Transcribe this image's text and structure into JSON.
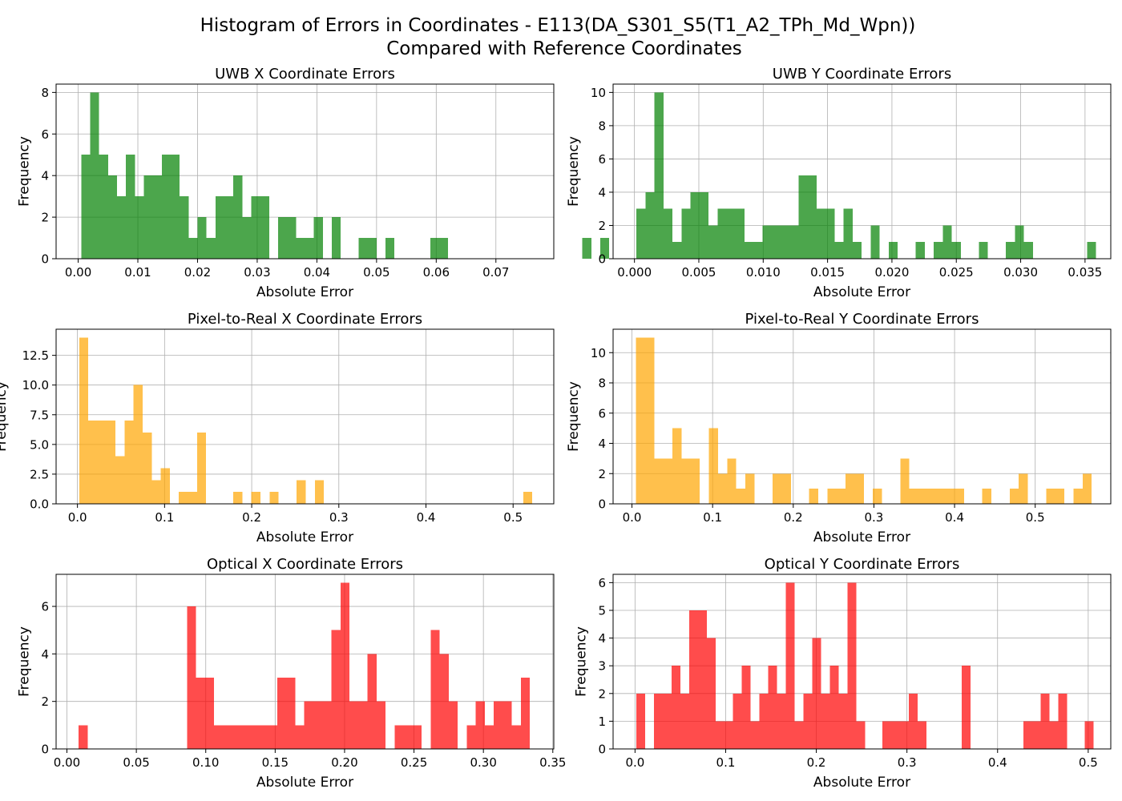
{
  "figure": {
    "title_line1": "Histogram of Errors in Coordinates - E113(DA_S301_S5(T1_A2_TPh_Md_Wpn))",
    "title_line2": "Compared with Reference Coordinates"
  },
  "chart_data": [
    {
      "type": "bar",
      "title": "UWB X Coordinate Errors",
      "xlabel": "Absolute Error",
      "ylabel": "Frequency",
      "color": "#008000",
      "bin_start": 0.0005,
      "bin_width": 0.0015,
      "counts": [
        5,
        8,
        5,
        4,
        3,
        5,
        3,
        4,
        4,
        5,
        5,
        3,
        1,
        2,
        1,
        3,
        3,
        4,
        2,
        3,
        3,
        0,
        2,
        2,
        1,
        1,
        2,
        0,
        2,
        0,
        0,
        1,
        1,
        0,
        1,
        0,
        0,
        0,
        0,
        1,
        1,
        0,
        0,
        0,
        0,
        0,
        0,
        0,
        0,
        0,
        0,
        0,
        0,
        0,
        0,
        0,
        1,
        0,
        1
      ],
      "xlim": [
        -0.0037,
        0.0797
      ],
      "ylim": [
        0,
        8.4
      ],
      "xticks": [
        0,
        0.01,
        0.02,
        0.03,
        0.04,
        0.05,
        0.06,
        0.07
      ],
      "xtick_labels": [
        "0.00",
        "0.01",
        "0.02",
        "0.03",
        "0.04",
        "0.05",
        "0.06",
        "0.07"
      ],
      "yticks": [
        0,
        2,
        4,
        6,
        8
      ],
      "ytick_labels": [
        "0",
        "2",
        "4",
        "6",
        "8"
      ],
      "grid": true
    },
    {
      "type": "bar",
      "title": "UWB Y Coordinate Errors",
      "xlabel": "Absolute Error",
      "ylabel": "Frequency",
      "color": "#008000",
      "bin_start": 0.00015,
      "bin_width": 0.0007,
      "counts": [
        3,
        4,
        10,
        3,
        1,
        3,
        4,
        4,
        2,
        3,
        3,
        3,
        1,
        1,
        2,
        2,
        2,
        2,
        5,
        5,
        3,
        3,
        1,
        3,
        1,
        0,
        2,
        0,
        1,
        0,
        0,
        1,
        0,
        1,
        2,
        1,
        0,
        0,
        1,
        0,
        0,
        1,
        2,
        1,
        0,
        0,
        0,
        0,
        0,
        0,
        1
      ],
      "xlim": [
        -0.00166,
        0.037
      ],
      "ylim": [
        0,
        10.5
      ],
      "xticks": [
        0,
        0.005,
        0.01,
        0.015,
        0.02,
        0.025,
        0.03,
        0.035
      ],
      "xtick_labels": [
        "0.000",
        "0.005",
        "0.010",
        "0.015",
        "0.020",
        "0.025",
        "0.030",
        "0.035"
      ],
      "yticks": [
        0,
        2,
        4,
        6,
        8,
        10
      ],
      "ytick_labels": [
        "0",
        "2",
        "4",
        "6",
        "8",
        "10"
      ],
      "grid": true
    },
    {
      "type": "bar",
      "title": "Pixel-to-Real X Coordinate Errors",
      "xlabel": "Absolute Error",
      "ylabel": "Frequency",
      "color": "#FFA500",
      "bin_start": 0.002,
      "bin_width": 0.0104,
      "counts": [
        14,
        7,
        7,
        7,
        4,
        7,
        10,
        6,
        2,
        3,
        0,
        1,
        1,
        6,
        0,
        0,
        0,
        1,
        0,
        1,
        0,
        1,
        0,
        0,
        2,
        0,
        2,
        0,
        0,
        0,
        0,
        0,
        0,
        0,
        0,
        0,
        0,
        0,
        0,
        0,
        0,
        0,
        0,
        0,
        0,
        0,
        0,
        0,
        0,
        1
      ],
      "xlim": [
        -0.0245,
        0.5467
      ],
      "ylim": [
        0,
        14.7
      ],
      "xticks": [
        0,
        0.1,
        0.2,
        0.3,
        0.4,
        0.5
      ],
      "xtick_labels": [
        "0.0",
        "0.1",
        "0.2",
        "0.3",
        "0.4",
        "0.5"
      ],
      "yticks": [
        0,
        2.5,
        5,
        7.5,
        10,
        12.5
      ],
      "ytick_labels": [
        "0.0",
        "2.5",
        "5.0",
        "7.5",
        "10.0",
        "12.5"
      ],
      "grid": true
    },
    {
      "type": "bar",
      "title": "Pixel-to-Real Y Coordinate Errors",
      "xlabel": "Absolute Error",
      "ylabel": "Frequency",
      "color": "#FFA500",
      "bin_start": 0.005,
      "bin_width": 0.0113,
      "counts": [
        11,
        11,
        3,
        3,
        5,
        3,
        3,
        0,
        5,
        2,
        3,
        1,
        2,
        0,
        0,
        2,
        2,
        0,
        0,
        1,
        0,
        1,
        1,
        2,
        2,
        0,
        1,
        0,
        0,
        3,
        1,
        1,
        1,
        1,
        1,
        1,
        0,
        0,
        1,
        0,
        0,
        1,
        2,
        0,
        0,
        1,
        1,
        0,
        1,
        2
      ],
      "xlim": [
        -0.0234,
        0.5937
      ],
      "ylim": [
        0,
        11.55
      ],
      "xticks": [
        0,
        0.1,
        0.2,
        0.3,
        0.4,
        0.5
      ],
      "xtick_labels": [
        "0.0",
        "0.1",
        "0.2",
        "0.3",
        "0.4",
        "0.5"
      ],
      "yticks": [
        0,
        2,
        4,
        6,
        8,
        10
      ],
      "ytick_labels": [
        "0",
        "2",
        "4",
        "6",
        "8",
        "10"
      ],
      "grid": true
    },
    {
      "type": "bar",
      "title": "Optical X Coordinate Errors",
      "xlabel": "Absolute Error",
      "ylabel": "Frequency",
      "color": "#FF0000",
      "bin_start": 0.0085,
      "bin_width": 0.0065,
      "counts": [
        1,
        0,
        0,
        0,
        0,
        0,
        0,
        0,
        0,
        0,
        0,
        0,
        6,
        3,
        3,
        1,
        1,
        1,
        1,
        1,
        1,
        1,
        3,
        3,
        1,
        2,
        2,
        2,
        5,
        7,
        2,
        2,
        4,
        2,
        0,
        1,
        1,
        1,
        0,
        5,
        4,
        2,
        0,
        1,
        2,
        1,
        2,
        2,
        1,
        3
      ],
      "xlim": [
        -0.0078,
        0.3507
      ],
      "ylim": [
        0,
        7.35
      ],
      "xticks": [
        0,
        0.05,
        0.1,
        0.15,
        0.2,
        0.25,
        0.3,
        0.35
      ],
      "xtick_labels": [
        "0.00",
        "0.05",
        "0.10",
        "0.15",
        "0.20",
        "0.25",
        "0.30",
        "0.35"
      ],
      "yticks": [
        0,
        2,
        4,
        6
      ],
      "ytick_labels": [
        "0",
        "2",
        "4",
        "6"
      ],
      "grid": true
    },
    {
      "type": "bar",
      "title": "Optical Y Coordinate Errors",
      "xlabel": "Absolute Error",
      "ylabel": "Frequency",
      "color": "#FF0000",
      "bin_start": 0.0015,
      "bin_width": 0.0097,
      "counts": [
        2,
        0,
        2,
        2,
        3,
        2,
        5,
        5,
        4,
        1,
        1,
        2,
        3,
        1,
        2,
        3,
        2,
        6,
        1,
        2,
        4,
        2,
        3,
        2,
        6,
        1,
        0,
        0,
        1,
        1,
        1,
        2,
        1,
        0,
        0,
        0,
        0,
        3,
        0,
        0,
        0,
        0,
        0,
        0,
        1,
        1,
        2,
        1,
        2,
        0,
        0,
        1
      ],
      "xlim": [
        -0.0242,
        0.5249
      ],
      "ylim": [
        0,
        6.3
      ],
      "xticks": [
        0,
        0.1,
        0.2,
        0.3,
        0.4,
        0.5
      ],
      "xtick_labels": [
        "0.0",
        "0.1",
        "0.2",
        "0.3",
        "0.4",
        "0.5"
      ],
      "yticks": [
        0,
        1,
        2,
        3,
        4,
        5,
        6
      ],
      "ytick_labels": [
        "0",
        "1",
        "2",
        "3",
        "4",
        "5",
        "6"
      ],
      "grid": true
    }
  ]
}
